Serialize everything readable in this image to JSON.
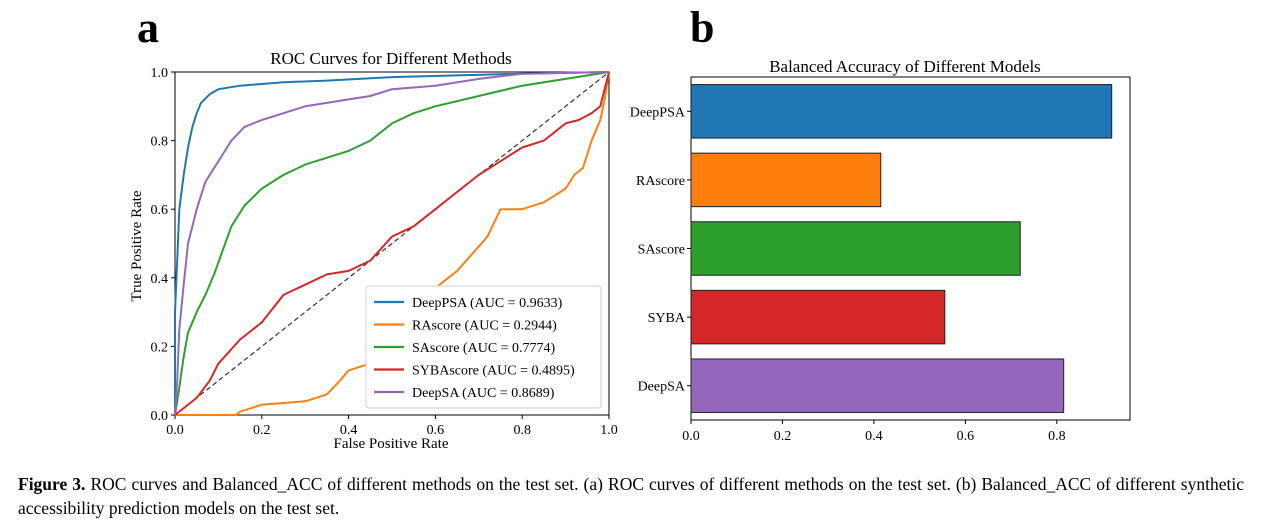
{
  "panel_a": {
    "letter": "a",
    "chart_data": {
      "type": "line",
      "title": "ROC Curves for Different Methods",
      "xlabel": "False Positive Rate",
      "ylabel": "True Positive Rate",
      "xlim": [
        0,
        1
      ],
      "ylim": [
        0,
        1
      ],
      "xticks": [
        "0.0",
        "0.2",
        "0.4",
        "0.6",
        "0.8",
        "1.0"
      ],
      "yticks": [
        "0.0",
        "0.2",
        "0.4",
        "0.6",
        "0.8",
        "1.0"
      ],
      "grid": false,
      "legend_position": "lower-right",
      "series": [
        {
          "name": "DeepPSA (AUC = 0.9633)",
          "color": "#1f77b4",
          "points": [
            [
              0,
              0
            ],
            [
              0,
              0.3
            ],
            [
              0.005,
              0.45
            ],
            [
              0.01,
              0.6
            ],
            [
              0.02,
              0.7
            ],
            [
              0.03,
              0.78
            ],
            [
              0.04,
              0.84
            ],
            [
              0.05,
              0.88
            ],
            [
              0.06,
              0.91
            ],
            [
              0.08,
              0.935
            ],
            [
              0.1,
              0.95
            ],
            [
              0.15,
              0.96
            ],
            [
              0.25,
              0.97
            ],
            [
              0.35,
              0.975
            ],
            [
              0.5,
              0.985
            ],
            [
              0.65,
              0.99
            ],
            [
              0.8,
              0.995
            ],
            [
              1,
              1
            ]
          ]
        },
        {
          "name": "RAscore (AUC = 0.2944)",
          "color": "#ff7f0e",
          "points": [
            [
              0,
              0
            ],
            [
              0.14,
              0
            ],
            [
              0.15,
              0.01
            ],
            [
              0.2,
              0.03
            ],
            [
              0.3,
              0.04
            ],
            [
              0.35,
              0.06
            ],
            [
              0.38,
              0.1
            ],
            [
              0.4,
              0.13
            ],
            [
              0.45,
              0.15
            ],
            [
              0.5,
              0.2
            ],
            [
              0.55,
              0.3
            ],
            [
              0.6,
              0.37
            ],
            [
              0.65,
              0.42
            ],
            [
              0.72,
              0.52
            ],
            [
              0.75,
              0.6
            ],
            [
              0.8,
              0.6
            ],
            [
              0.85,
              0.62
            ],
            [
              0.9,
              0.66
            ],
            [
              0.92,
              0.7
            ],
            [
              0.94,
              0.72
            ],
            [
              0.96,
              0.8
            ],
            [
              0.98,
              0.86
            ],
            [
              0.99,
              0.92
            ],
            [
              1,
              1
            ]
          ]
        },
        {
          "name": "SAscore (AUC = 0.7774)",
          "color": "#2ca02c",
          "points": [
            [
              0,
              0
            ],
            [
              0.01,
              0.08
            ],
            [
              0.02,
              0.17
            ],
            [
              0.03,
              0.24
            ],
            [
              0.05,
              0.3
            ],
            [
              0.07,
              0.35
            ],
            [
              0.09,
              0.41
            ],
            [
              0.11,
              0.48
            ],
            [
              0.13,
              0.55
            ],
            [
              0.16,
              0.61
            ],
            [
              0.2,
              0.66
            ],
            [
              0.25,
              0.7
            ],
            [
              0.3,
              0.73
            ],
            [
              0.4,
              0.77
            ],
            [
              0.45,
              0.8
            ],
            [
              0.5,
              0.85
            ],
            [
              0.55,
              0.88
            ],
            [
              0.6,
              0.9
            ],
            [
              0.7,
              0.93
            ],
            [
              0.8,
              0.96
            ],
            [
              0.9,
              0.98
            ],
            [
              1,
              1
            ]
          ]
        },
        {
          "name": "SYBAscore (AUC = 0.4895)",
          "color": "#d62728",
          "points": [
            [
              0,
              0
            ],
            [
              0.02,
              0.02
            ],
            [
              0.05,
              0.05
            ],
            [
              0.08,
              0.1
            ],
            [
              0.1,
              0.15
            ],
            [
              0.15,
              0.22
            ],
            [
              0.2,
              0.27
            ],
            [
              0.25,
              0.35
            ],
            [
              0.3,
              0.38
            ],
            [
              0.35,
              0.41
            ],
            [
              0.4,
              0.42
            ],
            [
              0.45,
              0.45
            ],
            [
              0.5,
              0.52
            ],
            [
              0.55,
              0.55
            ],
            [
              0.6,
              0.6
            ],
            [
              0.65,
              0.65
            ],
            [
              0.7,
              0.7
            ],
            [
              0.75,
              0.74
            ],
            [
              0.8,
              0.78
            ],
            [
              0.85,
              0.8
            ],
            [
              0.9,
              0.85
            ],
            [
              0.93,
              0.86
            ],
            [
              0.96,
              0.88
            ],
            [
              0.98,
              0.9
            ],
            [
              1,
              1
            ]
          ]
        },
        {
          "name": "DeepSA (AUC = 0.8689)",
          "color": "#9467bd",
          "points": [
            [
              0,
              0
            ],
            [
              0.005,
              0.1
            ],
            [
              0.01,
              0.25
            ],
            [
              0.02,
              0.38
            ],
            [
              0.03,
              0.5
            ],
            [
              0.05,
              0.6
            ],
            [
              0.07,
              0.68
            ],
            [
              0.1,
              0.74
            ],
            [
              0.13,
              0.8
            ],
            [
              0.16,
              0.84
            ],
            [
              0.2,
              0.86
            ],
            [
              0.25,
              0.88
            ],
            [
              0.3,
              0.9
            ],
            [
              0.35,
              0.91
            ],
            [
              0.4,
              0.92
            ],
            [
              0.45,
              0.93
            ],
            [
              0.5,
              0.95
            ],
            [
              0.6,
              0.96
            ],
            [
              0.7,
              0.98
            ],
            [
              0.8,
              0.995
            ],
            [
              1,
              1
            ]
          ]
        }
      ],
      "reference_line": {
        "style": "dashed",
        "color": "#333333",
        "from": [
          0,
          0
        ],
        "to": [
          1,
          1
        ]
      }
    }
  },
  "panel_b": {
    "letter": "b",
    "chart_data": {
      "type": "bar",
      "orientation": "horizontal",
      "title": "Balanced Accuracy of Different Models",
      "categories": [
        "DeepPSA",
        "RAscore",
        "SAscore",
        "SYBA",
        "DeepSA"
      ],
      "values": [
        0.92,
        0.415,
        0.72,
        0.555,
        0.815
      ],
      "colors": [
        "#1f77b4",
        "#ff7f0e",
        "#2ca02c",
        "#d62728",
        "#9467bd"
      ],
      "xlim": [
        0,
        0.96
      ],
      "xticks": [
        "0.0",
        "0.2",
        "0.4",
        "0.6",
        "0.8"
      ],
      "xlabel": "",
      "ylabel": "",
      "grid": false
    }
  },
  "caption": {
    "label": "Figure 3.",
    "text": "ROC curves and Balanced_ACC of different methods on the test set. (a) ROC curves of different methods on the test set. (b) Balanced_ACC of different synthetic accessibility prediction models on the test set."
  }
}
